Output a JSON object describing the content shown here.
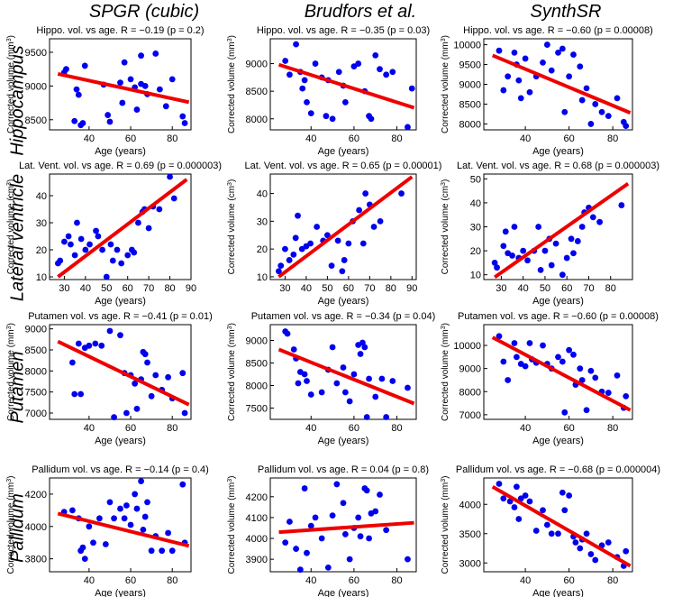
{
  "column_headers": [
    "SPGR (cubic)",
    "Brudfors et al.",
    "SynthSR"
  ],
  "row_headers": [
    "Hippocampus",
    "Lateral ventricle",
    "Putamen",
    "Pallidum"
  ],
  "styles": {
    "point_color": "#0000ee",
    "fit_color": "#ee0000"
  },
  "chart_data": [
    {
      "id": "hippo-spgr",
      "type": "scatter",
      "title": "Hippo. vol. vs age. R = −0.19 (p = 0.2)",
      "xlabel": "Age (years)",
      "ylabel": "Corrected volume (mm",
      "yunit_sup": "3",
      "ylabel_end": ")",
      "xlim": [
        21,
        89
      ],
      "ylim": [
        8350,
        9700
      ],
      "xticks": [
        40,
        60,
        80
      ],
      "yticks": [
        8500,
        9000,
        9500
      ],
      "x": [
        28,
        29,
        33,
        34,
        35,
        36,
        37,
        38,
        47,
        49,
        50,
        55,
        56,
        57,
        60,
        62,
        63,
        65,
        65,
        67,
        68,
        72,
        74,
        77,
        80,
        85,
        86
      ],
      "y": [
        9200,
        9250,
        8480,
        8950,
        8870,
        8420,
        8450,
        9300,
        9020,
        8570,
        8470,
        9050,
        8750,
        9350,
        9100,
        8980,
        8650,
        9030,
        9450,
        9000,
        8880,
        9480,
        8950,
        8700,
        9100,
        8550,
        8450
      ],
      "fit": [
        [
          25,
          9180
        ],
        [
          88,
          8760
        ]
      ]
    },
    {
      "id": "hippo-brudfors",
      "type": "scatter",
      "title": "Hippo. vol. vs age. R = −0.35 (p = 0.03)",
      "xlabel": "Age (years)",
      "ylabel": "Corrected volume (mm",
      "yunit_sup": "3",
      "ylabel_end": ")",
      "xlim": [
        21,
        89
      ],
      "ylim": [
        7800,
        9450
      ],
      "xticks": [
        40,
        60,
        80
      ],
      "yticks": [
        8000,
        8500,
        9000
      ],
      "x": [
        28,
        30,
        33,
        35,
        36,
        37,
        38,
        40,
        42,
        45,
        47,
        48,
        50,
        53,
        55,
        56,
        60,
        62,
        65,
        67,
        68,
        70,
        72,
        75,
        78,
        85,
        87
      ],
      "y": [
        9050,
        8800,
        9350,
        8850,
        8550,
        8700,
        8300,
        8100,
        9000,
        8750,
        8050,
        8700,
        8000,
        8850,
        8600,
        8300,
        8950,
        9000,
        8500,
        8050,
        8000,
        9150,
        8900,
        8800,
        8850,
        7850,
        8550
      ],
      "fit": [
        [
          25,
          8980
        ],
        [
          88,
          8200
        ]
      ]
    },
    {
      "id": "hippo-synthsr",
      "type": "scatter",
      "title": "Hippo. vol. vs age. R = −0.60 (p = 0.00008)",
      "xlabel": "Age (years)",
      "ylabel": "Corrected volume (mm",
      "yunit_sup": "3",
      "ylabel_end": ")",
      "xlim": [
        21,
        89
      ],
      "ylim": [
        7850,
        10150
      ],
      "xticks": [
        40,
        60,
        80
      ],
      "yticks": [
        8000,
        8500,
        9000,
        9500,
        10000
      ],
      "x": [
        28,
        30,
        32,
        35,
        36,
        37,
        38,
        40,
        42,
        45,
        48,
        50,
        52,
        55,
        57,
        58,
        60,
        62,
        65,
        66,
        68,
        70,
        72,
        75,
        78,
        82,
        85,
        86
      ],
      "y": [
        9850,
        8850,
        9200,
        9800,
        9500,
        9100,
        8650,
        9650,
        8800,
        9200,
        9550,
        10000,
        9350,
        9800,
        9900,
        8300,
        9200,
        9750,
        9450,
        8600,
        8900,
        8000,
        8500,
        8300,
        8200,
        8650,
        8050,
        7950
      ],
      "fit": [
        [
          25,
          9730
        ],
        [
          88,
          8280
        ]
      ]
    },
    {
      "id": "vent-spgr",
      "type": "scatter",
      "title": "Lat. Vent. vol. vs age. R = 0.69 (p = 0.000003)",
      "xlabel": "Age (years)",
      "ylabel": "Corrected volume (cm",
      "yunit_sup": "3",
      "ylabel_end": ")",
      "xlim": [
        23,
        90
      ],
      "ylim": [
        9,
        48
      ],
      "xticks": [
        30,
        40,
        50,
        60,
        70,
        80,
        90
      ],
      "yticks": [
        10,
        20,
        30,
        40
      ],
      "x": [
        27,
        28,
        30,
        32,
        33,
        35,
        36,
        38,
        40,
        42,
        45,
        46,
        48,
        50,
        52,
        53,
        55,
        57,
        60,
        62,
        63,
        65,
        67,
        68,
        70,
        72,
        75,
        80,
        82
      ],
      "y": [
        15,
        16,
        23,
        25,
        22,
        18,
        30,
        24,
        20,
        22,
        27,
        25,
        20,
        10,
        22,
        16,
        20,
        15,
        18,
        20,
        19,
        30,
        34,
        35,
        28,
        36,
        35,
        47,
        39
      ],
      "fit": [
        [
          27,
          10
        ],
        [
          88,
          46
        ]
      ]
    },
    {
      "id": "vent-brudfors",
      "type": "scatter",
      "title": "Lat. Vent. vol. vs age. R = 0.65 (p = 0.00001)",
      "xlabel": "Age (years)",
      "ylabel": "Corrected volume (cm",
      "yunit_sup": "3",
      "ylabel_end": ")",
      "xlim": [
        23,
        92
      ],
      "ylim": [
        9,
        47
      ],
      "xticks": [
        30,
        40,
        50,
        60,
        70,
        80,
        90
      ],
      "yticks": [
        10,
        20,
        30,
        40
      ],
      "x": [
        27,
        28,
        30,
        32,
        34,
        35,
        36,
        38,
        40,
        42,
        45,
        48,
        50,
        52,
        55,
        57,
        58,
        60,
        62,
        65,
        67,
        68,
        70,
        72,
        75,
        85
      ],
      "y": [
        12,
        14,
        20,
        16,
        18,
        24,
        32,
        20,
        21,
        22,
        28,
        23,
        25,
        14,
        23,
        12,
        16,
        22,
        30,
        34,
        22,
        40,
        36,
        28,
        30,
        40
      ],
      "fit": [
        [
          27,
          10
        ],
        [
          90,
          46
        ]
      ]
    },
    {
      "id": "vent-synthsr",
      "type": "scatter",
      "title": "Lat. Vent. vol. vs age. R = 0.68 (p = 0.000003)",
      "xlabel": "Age (years)",
      "ylabel": "Corrected volume (cm",
      "yunit_sup": "3",
      "ylabel_end": ")",
      "xlim": [
        22,
        90
      ],
      "ylim": [
        8,
        52
      ],
      "xticks": [
        30,
        40,
        50,
        60,
        70,
        80
      ],
      "yticks": [
        10,
        20,
        30,
        40,
        50
      ],
      "x": [
        27,
        28,
        31,
        32,
        33,
        35,
        36,
        38,
        40,
        42,
        45,
        47,
        48,
        50,
        52,
        53,
        55,
        58,
        60,
        62,
        63,
        65,
        67,
        68,
        70,
        72,
        75,
        85
      ],
      "y": [
        15,
        13,
        22,
        28,
        19,
        18,
        30,
        17,
        20,
        16,
        20,
        30,
        12,
        20,
        25,
        14,
        23,
        10,
        17,
        25,
        19,
        24,
        30,
        36,
        38,
        34,
        32,
        39
      ],
      "fit": [
        [
          27,
          9
        ],
        [
          88,
          48
        ]
      ]
    },
    {
      "id": "putamen-spgr",
      "type": "scatter",
      "title": "Putamen vol. vs age. R = −0.41 (p = 0.01)",
      "xlabel": "Age (years)",
      "ylabel": "Corrected volume (mm",
      "yunit_sup": "3",
      "ylabel_end": ")",
      "xlim": [
        21,
        89
      ],
      "ylim": [
        6850,
        9100
      ],
      "xticks": [
        40,
        60,
        80
      ],
      "yticks": [
        7000,
        7500,
        8000,
        8500,
        9000
      ],
      "x": [
        32,
        33,
        35,
        36,
        38,
        40,
        43,
        46,
        50,
        52,
        55,
        57,
        58,
        60,
        62,
        63,
        65,
        66,
        67,
        68,
        70,
        72,
        75,
        78,
        80,
        85,
        86
      ],
      "y": [
        8200,
        7450,
        8650,
        7450,
        8550,
        8600,
        8650,
        8600,
        8950,
        6900,
        8850,
        7950,
        7000,
        7900,
        7700,
        7100,
        7800,
        8450,
        8400,
        8200,
        7400,
        7900,
        7550,
        7850,
        7350,
        7950,
        7000
      ],
      "fit": [
        [
          25,
          8700
        ],
        [
          88,
          7200
        ]
      ]
    },
    {
      "id": "putamen-brudfors",
      "type": "scatter",
      "title": "Putamen vol. vs age. R = −0.34 (p = 0.04)",
      "xlabel": "Age (years)",
      "ylabel": "Corrected volume (mm",
      "yunit_sup": "3",
      "ylabel_end": ")",
      "xlim": [
        21,
        89
      ],
      "ylim": [
        7250,
        9350
      ],
      "xticks": [
        40,
        60,
        80
      ],
      "yticks": [
        7500,
        8000,
        8500,
        9000
      ],
      "x": [
        28,
        29,
        32,
        33,
        34,
        35,
        37,
        38,
        40,
        45,
        48,
        50,
        52,
        55,
        56,
        58,
        60,
        62,
        63,
        64,
        65,
        66,
        67,
        70,
        73,
        75,
        78,
        85
      ],
      "y": [
        9200,
        9150,
        8800,
        8600,
        8050,
        8300,
        8250,
        8100,
        7800,
        7850,
        8350,
        8850,
        8050,
        8400,
        7850,
        7650,
        8250,
        8900,
        8700,
        8950,
        8850,
        7300,
        8150,
        7750,
        8150,
        7300,
        8100,
        7950
      ],
      "fit": [
        [
          25,
          8800
        ],
        [
          88,
          7600
        ]
      ]
    },
    {
      "id": "putamen-synthsr",
      "type": "scatter",
      "title": "Putamen vol. vs age. R = −0.60 (p = 0.00008)",
      "xlabel": "Age (years)",
      "ylabel": "Corrected volume (mm",
      "yunit_sup": "3",
      "ylabel_end": ")",
      "xlim": [
        21,
        89
      ],
      "ylim": [
        6800,
        10900
      ],
      "xticks": [
        40,
        60,
        80
      ],
      "yticks": [
        7000,
        8000,
        9000,
        10000
      ],
      "x": [
        28,
        30,
        32,
        35,
        36,
        38,
        40,
        42,
        43,
        45,
        48,
        50,
        52,
        55,
        57,
        58,
        60,
        62,
        63,
        65,
        66,
        68,
        70,
        72,
        75,
        78,
        82,
        85,
        86
      ],
      "y": [
        10400,
        9300,
        8500,
        10100,
        9500,
        9200,
        9100,
        10100,
        9400,
        9250,
        10000,
        9200,
        9000,
        9500,
        9300,
        7100,
        9800,
        9600,
        8300,
        9000,
        8500,
        7200,
        8900,
        8600,
        8000,
        7950,
        8700,
        7300,
        7800
      ],
      "fit": [
        [
          25,
          10350
        ],
        [
          88,
          7200
        ]
      ]
    },
    {
      "id": "pallidum-spgr",
      "type": "scatter",
      "title": "Pallidum vol. vs age. R = −0.14 (p = 0.4)",
      "xlabel": "Age (years)",
      "ylabel": "Corrected volume (mm",
      "yunit_sup": "3",
      "ylabel_end": ")",
      "xlim": [
        21,
        89
      ],
      "ylim": [
        3720,
        4300
      ],
      "xticks": [
        40,
        60,
        80
      ],
      "yticks": [
        3800,
        4000,
        4200
      ],
      "x": [
        28,
        32,
        35,
        36,
        37,
        38,
        40,
        42,
        45,
        48,
        50,
        52,
        55,
        57,
        58,
        60,
        62,
        63,
        65,
        66,
        67,
        68,
        70,
        72,
        75,
        78,
        80,
        85,
        86
      ],
      "y": [
        4090,
        4100,
        4050,
        3850,
        3870,
        3800,
        4000,
        3900,
        4050,
        3890,
        4150,
        4050,
        4110,
        4050,
        4130,
        4010,
        4200,
        4110,
        4280,
        3980,
        4060,
        4150,
        3850,
        3940,
        3850,
        3960,
        3850,
        4260,
        3900
      ],
      "fit": [
        [
          25,
          4080
        ],
        [
          88,
          3880
        ]
      ]
    },
    {
      "id": "pallidum-brudfors",
      "type": "scatter",
      "title": "Pallidum vol. vs age. R = 0.04 (p = 0.8)",
      "xlabel": "Age (years)",
      "ylabel": "Corrected volume (mm",
      "yunit_sup": "3",
      "ylabel_end": ")",
      "xlim": [
        21,
        89
      ],
      "ylim": [
        3840,
        4290
      ],
      "xticks": [
        40,
        60,
        80
      ],
      "yticks": [
        3900,
        4000,
        4100,
        4200
      ],
      "x": [
        28,
        30,
        33,
        35,
        37,
        38,
        40,
        42,
        45,
        48,
        50,
        52,
        55,
        56,
        58,
        60,
        62,
        63,
        65,
        66,
        67,
        68,
        70,
        72,
        75,
        85
      ],
      "y": [
        3980,
        4080,
        3950,
        3850,
        4240,
        3930,
        4060,
        4100,
        4000,
        3860,
        4110,
        4260,
        4170,
        4020,
        3900,
        4050,
        4100,
        4010,
        4240,
        4230,
        4000,
        4120,
        4130,
        4210,
        4040,
        3900
      ],
      "fit": [
        [
          25,
          4030
        ],
        [
          88,
          4075
        ]
      ]
    },
    {
      "id": "pallidum-synthsr",
      "type": "scatter",
      "title": "Pallidum vol. vs age. R = −0.68 (p = 0.000004)",
      "xlabel": "Age (years)",
      "ylabel": "Corrected volume (mm",
      "yunit_sup": "3",
      "ylabel_end": ")",
      "xlim": [
        21,
        89
      ],
      "ylim": [
        2850,
        4450
      ],
      "xticks": [
        40,
        60,
        80
      ],
      "yticks": [
        3000,
        3500,
        4000
      ],
      "x": [
        28,
        30,
        33,
        35,
        36,
        37,
        38,
        40,
        42,
        45,
        48,
        50,
        52,
        55,
        57,
        58,
        60,
        62,
        63,
        65,
        66,
        68,
        70,
        72,
        75,
        78,
        82,
        85,
        86
      ],
      "y": [
        4350,
        4100,
        4050,
        3950,
        4300,
        3750,
        4100,
        4150,
        4050,
        3550,
        3900,
        3650,
        3500,
        3500,
        4200,
        3900,
        4150,
        3450,
        3350,
        3250,
        3400,
        3500,
        3150,
        3050,
        3300,
        3350,
        3100,
        2950,
        3200
      ],
      "fit": [
        [
          25,
          4300
        ],
        [
          88,
          2950
        ]
      ]
    }
  ]
}
